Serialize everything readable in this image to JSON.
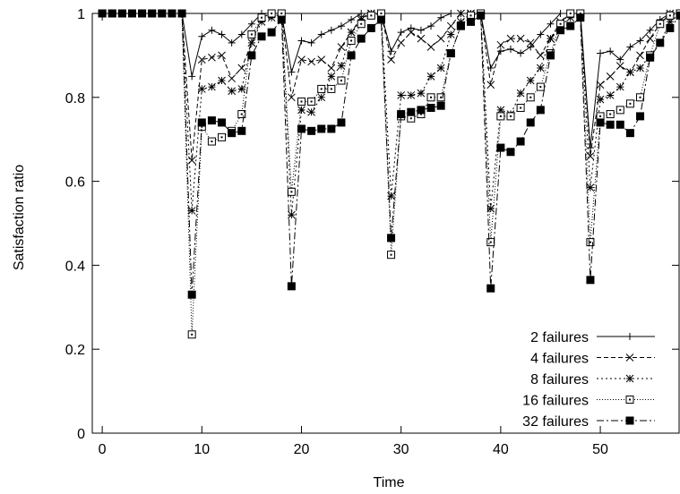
{
  "chart_data": {
    "type": "line",
    "xlabel": "Time",
    "ylabel": "Satisfaction ratio",
    "xlim": [
      -1,
      58
    ],
    "ylim": [
      0,
      1
    ],
    "xticks": [
      0,
      10,
      20,
      30,
      40,
      50
    ],
    "yticks": [
      0,
      0.2,
      0.4,
      0.6,
      0.8,
      1
    ],
    "xtick_labels": [
      "0",
      "10",
      "20",
      "30",
      "40",
      "50"
    ],
    "ytick_labels": [
      "0",
      "0.2",
      "0.4",
      "0.6",
      "0.8",
      "1"
    ],
    "grid": false,
    "legend_position": "bottom-right",
    "series": [
      {
        "name": "2 failures",
        "marker": "plus",
        "dash": "",
        "points": [
          [
            0,
            1
          ],
          [
            1,
            1
          ],
          [
            2,
            1
          ],
          [
            3,
            1
          ],
          [
            4,
            1
          ],
          [
            5,
            1
          ],
          [
            6,
            1
          ],
          [
            7,
            1
          ],
          [
            8,
            1
          ],
          [
            9,
            0.85
          ],
          [
            10,
            0.945
          ],
          [
            11,
            0.96
          ],
          [
            12,
            0.95
          ],
          [
            13,
            0.93
          ],
          [
            14,
            0.95
          ],
          [
            15,
            0.975
          ],
          [
            16,
            1
          ],
          [
            17,
            1
          ],
          [
            18,
            1
          ],
          [
            19,
            0.86
          ],
          [
            20,
            0.935
          ],
          [
            21,
            0.93
          ],
          [
            22,
            0.95
          ],
          [
            23,
            0.96
          ],
          [
            24,
            0.97
          ],
          [
            25,
            0.985
          ],
          [
            26,
            1
          ],
          [
            27,
            1
          ],
          [
            28,
            1
          ],
          [
            29,
            0.91
          ],
          [
            30,
            0.955
          ],
          [
            31,
            0.965
          ],
          [
            32,
            0.96
          ],
          [
            33,
            0.97
          ],
          [
            34,
            0.99
          ],
          [
            35,
            1
          ],
          [
            36,
            1
          ],
          [
            37,
            1
          ],
          [
            38,
            1
          ],
          [
            39,
            0.87
          ],
          [
            40,
            0.91
          ],
          [
            41,
            0.915
          ],
          [
            42,
            0.905
          ],
          [
            43,
            0.92
          ],
          [
            44,
            0.95
          ],
          [
            45,
            0.975
          ],
          [
            46,
            1
          ],
          [
            47,
            1
          ],
          [
            48,
            1
          ],
          [
            49,
            0.68
          ],
          [
            50,
            0.905
          ],
          [
            51,
            0.91
          ],
          [
            52,
            0.89
          ],
          [
            53,
            0.92
          ],
          [
            54,
            0.935
          ],
          [
            55,
            0.96
          ],
          [
            56,
            0.985
          ],
          [
            57,
            1
          ],
          [
            58,
            1
          ]
        ]
      },
      {
        "name": "4 failures",
        "marker": "x",
        "dash": "5,3",
        "points": [
          [
            0,
            1
          ],
          [
            1,
            1
          ],
          [
            2,
            1
          ],
          [
            3,
            1
          ],
          [
            4,
            1
          ],
          [
            5,
            1
          ],
          [
            6,
            1
          ],
          [
            7,
            1
          ],
          [
            8,
            1
          ],
          [
            9,
            0.65
          ],
          [
            10,
            0.89
          ],
          [
            11,
            0.895
          ],
          [
            12,
            0.9
          ],
          [
            13,
            0.845
          ],
          [
            14,
            0.87
          ],
          [
            15,
            0.93
          ],
          [
            16,
            0.99
          ],
          [
            17,
            1
          ],
          [
            18,
            1
          ],
          [
            19,
            0.8
          ],
          [
            20,
            0.89
          ],
          [
            21,
            0.885
          ],
          [
            22,
            0.89
          ],
          [
            23,
            0.87
          ],
          [
            24,
            0.92
          ],
          [
            25,
            0.955
          ],
          [
            26,
            0.99
          ],
          [
            27,
            1
          ],
          [
            28,
            1
          ],
          [
            29,
            0.89
          ],
          [
            30,
            0.93
          ],
          [
            31,
            0.955
          ],
          [
            32,
            0.94
          ],
          [
            33,
            0.92
          ],
          [
            34,
            0.94
          ],
          [
            35,
            0.97
          ],
          [
            36,
            1
          ],
          [
            37,
            1
          ],
          [
            38,
            1
          ],
          [
            39,
            0.83
          ],
          [
            40,
            0.925
          ],
          [
            41,
            0.94
          ],
          [
            42,
            0.94
          ],
          [
            43,
            0.93
          ],
          [
            44,
            0.9
          ],
          [
            45,
            0.94
          ],
          [
            46,
            0.98
          ],
          [
            47,
            1
          ],
          [
            48,
            1
          ],
          [
            49,
            0.66
          ],
          [
            50,
            0.83
          ],
          [
            51,
            0.85
          ],
          [
            52,
            0.875
          ],
          [
            53,
            0.86
          ],
          [
            54,
            0.9
          ],
          [
            55,
            0.94
          ],
          [
            56,
            0.975
          ],
          [
            57,
            1
          ],
          [
            58,
            1
          ]
        ]
      },
      {
        "name": "8 failures",
        "marker": "star",
        "dash": "2,3",
        "points": [
          [
            0,
            1
          ],
          [
            1,
            1
          ],
          [
            2,
            1
          ],
          [
            3,
            1
          ],
          [
            4,
            1
          ],
          [
            5,
            1
          ],
          [
            6,
            1
          ],
          [
            7,
            1
          ],
          [
            8,
            1
          ],
          [
            9,
            0.53
          ],
          [
            10,
            0.82
          ],
          [
            11,
            0.825
          ],
          [
            12,
            0.84
          ],
          [
            13,
            0.815
          ],
          [
            14,
            0.82
          ],
          [
            15,
            0.93
          ],
          [
            16,
            0.98
          ],
          [
            17,
            0.99
          ],
          [
            18,
            1
          ],
          [
            19,
            0.52
          ],
          [
            20,
            0.77
          ],
          [
            21,
            0.765
          ],
          [
            22,
            0.8
          ],
          [
            23,
            0.85
          ],
          [
            24,
            0.875
          ],
          [
            25,
            0.955
          ],
          [
            26,
            0.985
          ],
          [
            27,
            1
          ],
          [
            28,
            1
          ],
          [
            29,
            0.565
          ],
          [
            30,
            0.805
          ],
          [
            31,
            0.805
          ],
          [
            32,
            0.81
          ],
          [
            33,
            0.85
          ],
          [
            34,
            0.87
          ],
          [
            35,
            0.95
          ],
          [
            36,
            0.98
          ],
          [
            37,
            1
          ],
          [
            38,
            1
          ],
          [
            39,
            0.535
          ],
          [
            40,
            0.77
          ],
          [
            41,
            0.76
          ],
          [
            42,
            0.81
          ],
          [
            43,
            0.84
          ],
          [
            44,
            0.87
          ],
          [
            45,
            0.94
          ],
          [
            46,
            0.97
          ],
          [
            47,
            0.99
          ],
          [
            48,
            1
          ],
          [
            49,
            0.585
          ],
          [
            50,
            0.795
          ],
          [
            51,
            0.805
          ],
          [
            52,
            0.825
          ],
          [
            53,
            0.86
          ],
          [
            54,
            0.87
          ],
          [
            55,
            0.9
          ],
          [
            56,
            0.93
          ],
          [
            57,
            0.98
          ],
          [
            58,
            1
          ]
        ]
      },
      {
        "name": "16 failures",
        "marker": "open-square",
        "dash": "1,2",
        "points": [
          [
            0,
            1
          ],
          [
            1,
            1
          ],
          [
            2,
            1
          ],
          [
            3,
            1
          ],
          [
            4,
            1
          ],
          [
            5,
            1
          ],
          [
            6,
            1
          ],
          [
            7,
            1
          ],
          [
            8,
            1
          ],
          [
            9,
            0.235
          ],
          [
            10,
            0.73
          ],
          [
            11,
            0.695
          ],
          [
            12,
            0.705
          ],
          [
            13,
            0.72
          ],
          [
            14,
            0.76
          ],
          [
            15,
            0.95
          ],
          [
            16,
            0.99
          ],
          [
            17,
            1
          ],
          [
            18,
            1
          ],
          [
            19,
            0.575
          ],
          [
            20,
            0.79
          ],
          [
            21,
            0.79
          ],
          [
            22,
            0.82
          ],
          [
            23,
            0.82
          ],
          [
            24,
            0.84
          ],
          [
            25,
            0.935
          ],
          [
            26,
            0.975
          ],
          [
            27,
            0.995
          ],
          [
            28,
            1
          ],
          [
            29,
            0.425
          ],
          [
            30,
            0.755
          ],
          [
            31,
            0.75
          ],
          [
            32,
            0.76
          ],
          [
            33,
            0.8
          ],
          [
            34,
            0.8
          ],
          [
            35,
            0.905
          ],
          [
            36,
            0.97
          ],
          [
            37,
            0.995
          ],
          [
            38,
            1
          ],
          [
            39,
            0.455
          ],
          [
            40,
            0.755
          ],
          [
            41,
            0.755
          ],
          [
            42,
            0.775
          ],
          [
            43,
            0.8
          ],
          [
            44,
            0.825
          ],
          [
            45,
            0.905
          ],
          [
            46,
            0.975
          ],
          [
            47,
            1
          ],
          [
            48,
            1
          ],
          [
            49,
            0.455
          ],
          [
            50,
            0.755
          ],
          [
            51,
            0.76
          ],
          [
            52,
            0.77
          ],
          [
            53,
            0.785
          ],
          [
            54,
            0.8
          ],
          [
            55,
            0.9
          ],
          [
            56,
            0.975
          ],
          [
            57,
            0.995
          ],
          [
            58,
            1
          ]
        ]
      },
      {
        "name": "32 failures",
        "marker": "filled-square",
        "dash": "8,3,2,3",
        "points": [
          [
            0,
            1
          ],
          [
            1,
            1
          ],
          [
            2,
            1
          ],
          [
            3,
            1
          ],
          [
            4,
            1
          ],
          [
            5,
            1
          ],
          [
            6,
            1
          ],
          [
            7,
            1
          ],
          [
            8,
            1
          ],
          [
            9,
            0.33
          ],
          [
            10,
            0.74
          ],
          [
            11,
            0.745
          ],
          [
            12,
            0.74
          ],
          [
            13,
            0.715
          ],
          [
            14,
            0.72
          ],
          [
            15,
            0.9
          ],
          [
            16,
            0.945
          ],
          [
            17,
            0.955
          ],
          [
            18,
            0.985
          ],
          [
            19,
            0.35
          ],
          [
            20,
            0.725
          ],
          [
            21,
            0.72
          ],
          [
            22,
            0.725
          ],
          [
            23,
            0.725
          ],
          [
            24,
            0.74
          ],
          [
            25,
            0.9
          ],
          [
            26,
            0.94
          ],
          [
            27,
            0.965
          ],
          [
            28,
            0.985
          ],
          [
            29,
            0.465
          ],
          [
            30,
            0.76
          ],
          [
            31,
            0.765
          ],
          [
            32,
            0.77
          ],
          [
            33,
            0.775
          ],
          [
            34,
            0.78
          ],
          [
            35,
            0.905
          ],
          [
            36,
            0.97
          ],
          [
            37,
            0.98
          ],
          [
            38,
            0.995
          ],
          [
            39,
            0.345
          ],
          [
            40,
            0.68
          ],
          [
            41,
            0.67
          ],
          [
            42,
            0.695
          ],
          [
            43,
            0.74
          ],
          [
            44,
            0.77
          ],
          [
            45,
            0.9
          ],
          [
            46,
            0.96
          ],
          [
            47,
            0.97
          ],
          [
            48,
            0.99
          ],
          [
            49,
            0.365
          ],
          [
            50,
            0.74
          ],
          [
            51,
            0.735
          ],
          [
            52,
            0.735
          ],
          [
            53,
            0.715
          ],
          [
            54,
            0.755
          ],
          [
            55,
            0.895
          ],
          [
            56,
            0.93
          ],
          [
            57,
            0.965
          ],
          [
            58,
            0.995
          ]
        ]
      }
    ]
  }
}
